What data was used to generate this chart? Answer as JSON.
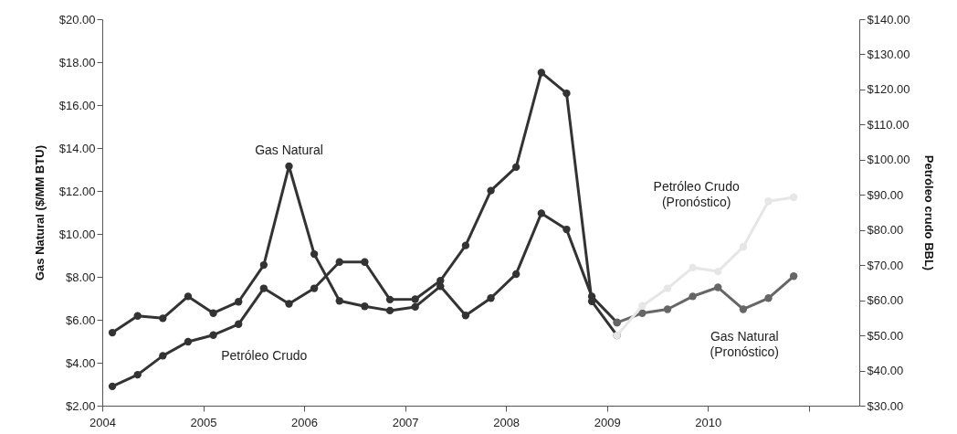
{
  "chart_data": {
    "type": "line",
    "ylabel": "Gas Natural ($/MM BTU)",
    "y2label": "Petróleo crudo  BBL)",
    "x": [
      2004.1,
      2004.35,
      2004.6,
      2004.85,
      2005.1,
      2005.35,
      2005.6,
      2005.85,
      2006.1,
      2006.35,
      2006.6,
      2006.85,
      2007.1,
      2007.35,
      2007.6,
      2007.85,
      2008.1,
      2008.35,
      2008.6,
      2008.85,
      2009.1,
      2009.35,
      2009.6,
      2009.85,
      2010.1,
      2010.35,
      2010.6,
      2010.85
    ],
    "series": [
      {
        "name": "Gas Natural",
        "color": "#333333",
        "values": [
          5.4,
          6.18,
          6.07,
          7.09,
          6.31,
          6.84,
          8.55,
          13.15,
          9.06,
          6.88,
          6.63,
          6.43,
          6.6,
          7.56,
          6.2,
          7.01,
          8.13,
          10.96,
          10.21,
          7.09,
          5.87,
          null,
          null,
          null,
          null,
          null,
          null,
          null
        ]
      },
      {
        "name": "Petróleo Crudo",
        "color": "#333333",
        "axis": "y2",
        "values": [
          35.5,
          38.8,
          44.2,
          48.2,
          50.1,
          53.2,
          63.4,
          59.0,
          63.4,
          70.9,
          70.9,
          60.2,
          60.3,
          65.6,
          75.6,
          91.2,
          97.9,
          124.8,
          118.9,
          59.7,
          50,
          null,
          null,
          null,
          null,
          null,
          null,
          null
        ]
      },
      {
        "name": "Gas Natural (Pronóstico)",
        "color": "#666666",
        "values": [
          null,
          null,
          null,
          null,
          null,
          null,
          null,
          null,
          null,
          null,
          null,
          null,
          null,
          null,
          null,
          null,
          null,
          null,
          null,
          null,
          5.87,
          6.31,
          6.49,
          7.09,
          7.51,
          6.49,
          7.01,
          8.03
        ]
      },
      {
        "name": "Petróleo Crudo (Pronóstico)",
        "color": "#e6e6e6",
        "axis": "y2",
        "values": [
          null,
          null,
          null,
          null,
          null,
          null,
          null,
          null,
          null,
          null,
          null,
          null,
          null,
          null,
          null,
          null,
          null,
          null,
          null,
          null,
          50,
          58.4,
          63.4,
          69.3,
          68.2,
          75.2,
          88.2,
          89.3
        ]
      }
    ],
    "xlim": [
      2004,
      2011.5
    ],
    "xticks": [
      2004,
      2005,
      2006,
      2007,
      2008,
      2009,
      2010,
      {
        "value": 2011,
        "label": null
      }
    ],
    "ylim": [
      2,
      20
    ],
    "yticks": [
      {
        "value": 2,
        "label": "$2.00"
      },
      {
        "value": 4,
        "label": "$4.00"
      },
      {
        "value": 6,
        "label": "$6.00"
      },
      {
        "value": 8,
        "label": "$8.00"
      },
      {
        "value": 10,
        "label": "$10.00"
      },
      {
        "value": 12,
        "label": "$12.00"
      },
      {
        "value": 14,
        "label": "$14.00"
      },
      {
        "value": 16,
        "label": "$16.00"
      },
      {
        "value": 18,
        "label": "$18.00"
      },
      {
        "value": 20,
        "label": "$20.00"
      }
    ],
    "y2lim": [
      30,
      140
    ],
    "y2ticks": [
      {
        "value": 30,
        "label": "$30.00"
      },
      {
        "value": 40,
        "label": "$40.00"
      },
      {
        "value": 50,
        "label": "$50.00"
      },
      {
        "value": 60,
        "label": "$60.00"
      },
      {
        "value": 70,
        "label": "$70.00"
      },
      {
        "value": 80,
        "label": "$80.00"
      },
      {
        "value": 90,
        "label": "$90.00"
      },
      {
        "value": 100,
        "label": "$100.00"
      },
      {
        "value": 110,
        "label": "$110.00"
      },
      {
        "value": 120,
        "label": "$120.00"
      },
      {
        "value": 130,
        "label": "$130.00"
      },
      {
        "value": 140,
        "label": "$140.00"
      }
    ],
    "grid": false,
    "marker": "circle",
    "line_style": "solid"
  }
}
